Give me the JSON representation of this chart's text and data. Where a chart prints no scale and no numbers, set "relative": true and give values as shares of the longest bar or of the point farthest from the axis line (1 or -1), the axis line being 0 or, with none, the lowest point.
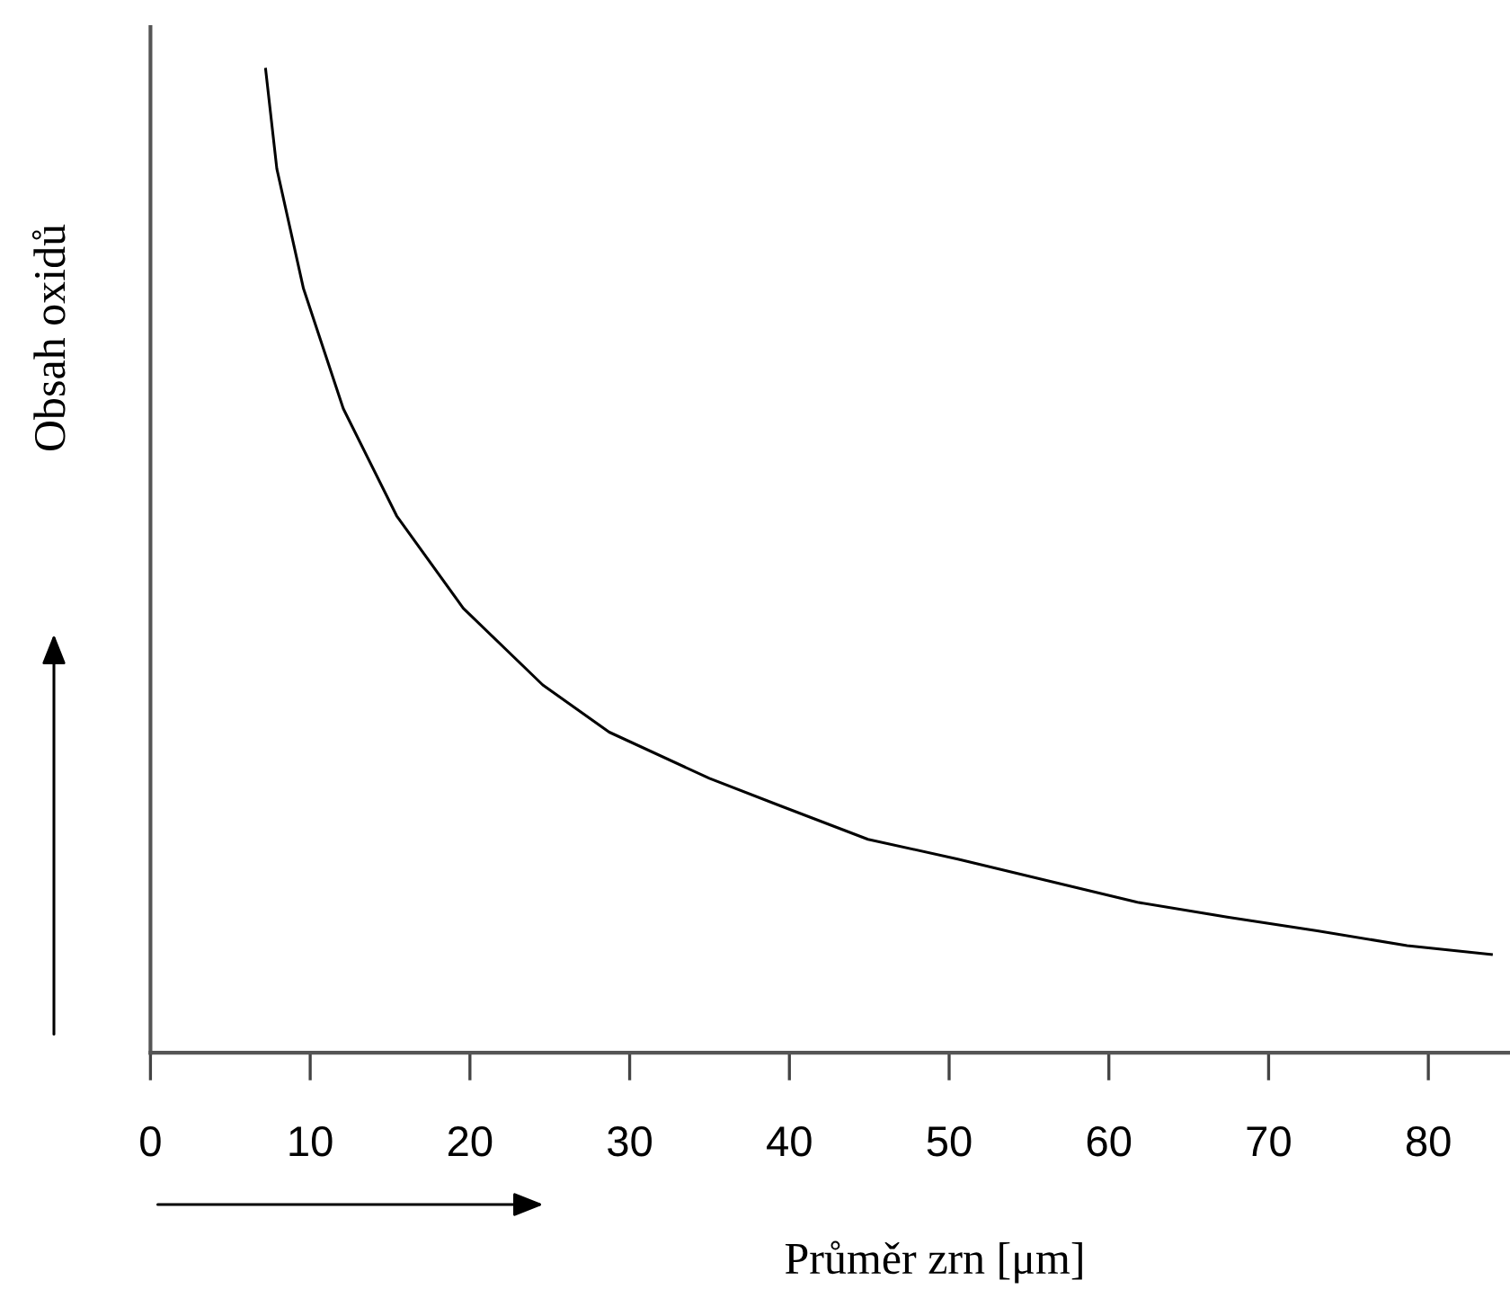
{
  "chart_data": {
    "type": "line",
    "relative": true,
    "xlabel": "Průměr zrn [μm]",
    "ylabel": "Obsah oxidů",
    "xlim": [
      0,
      85
    ],
    "xticks": [
      0,
      10,
      20,
      30,
      40,
      50,
      60,
      70,
      80
    ],
    "grid": false,
    "legend": false,
    "marker": "none",
    "line_style": "solid",
    "series": [
      {
        "color": "#000000",
        "x": [
          7.21,
          7.91,
          9.58,
          12.07,
          15.41,
          19.58,
          24.56,
          28.72,
          34.99,
          39.29,
          44.92,
          50.54,
          56.16,
          61.79,
          67.41,
          73.04,
          78.67,
          83.95
        ],
        "values": [
          1.0,
          0.899,
          0.777,
          0.655,
          0.546,
          0.452,
          0.374,
          0.326,
          0.279,
          0.252,
          0.217,
          0.197,
          0.175,
          0.153,
          0.138,
          0.124,
          0.109,
          0.1
        ]
      }
    ]
  }
}
